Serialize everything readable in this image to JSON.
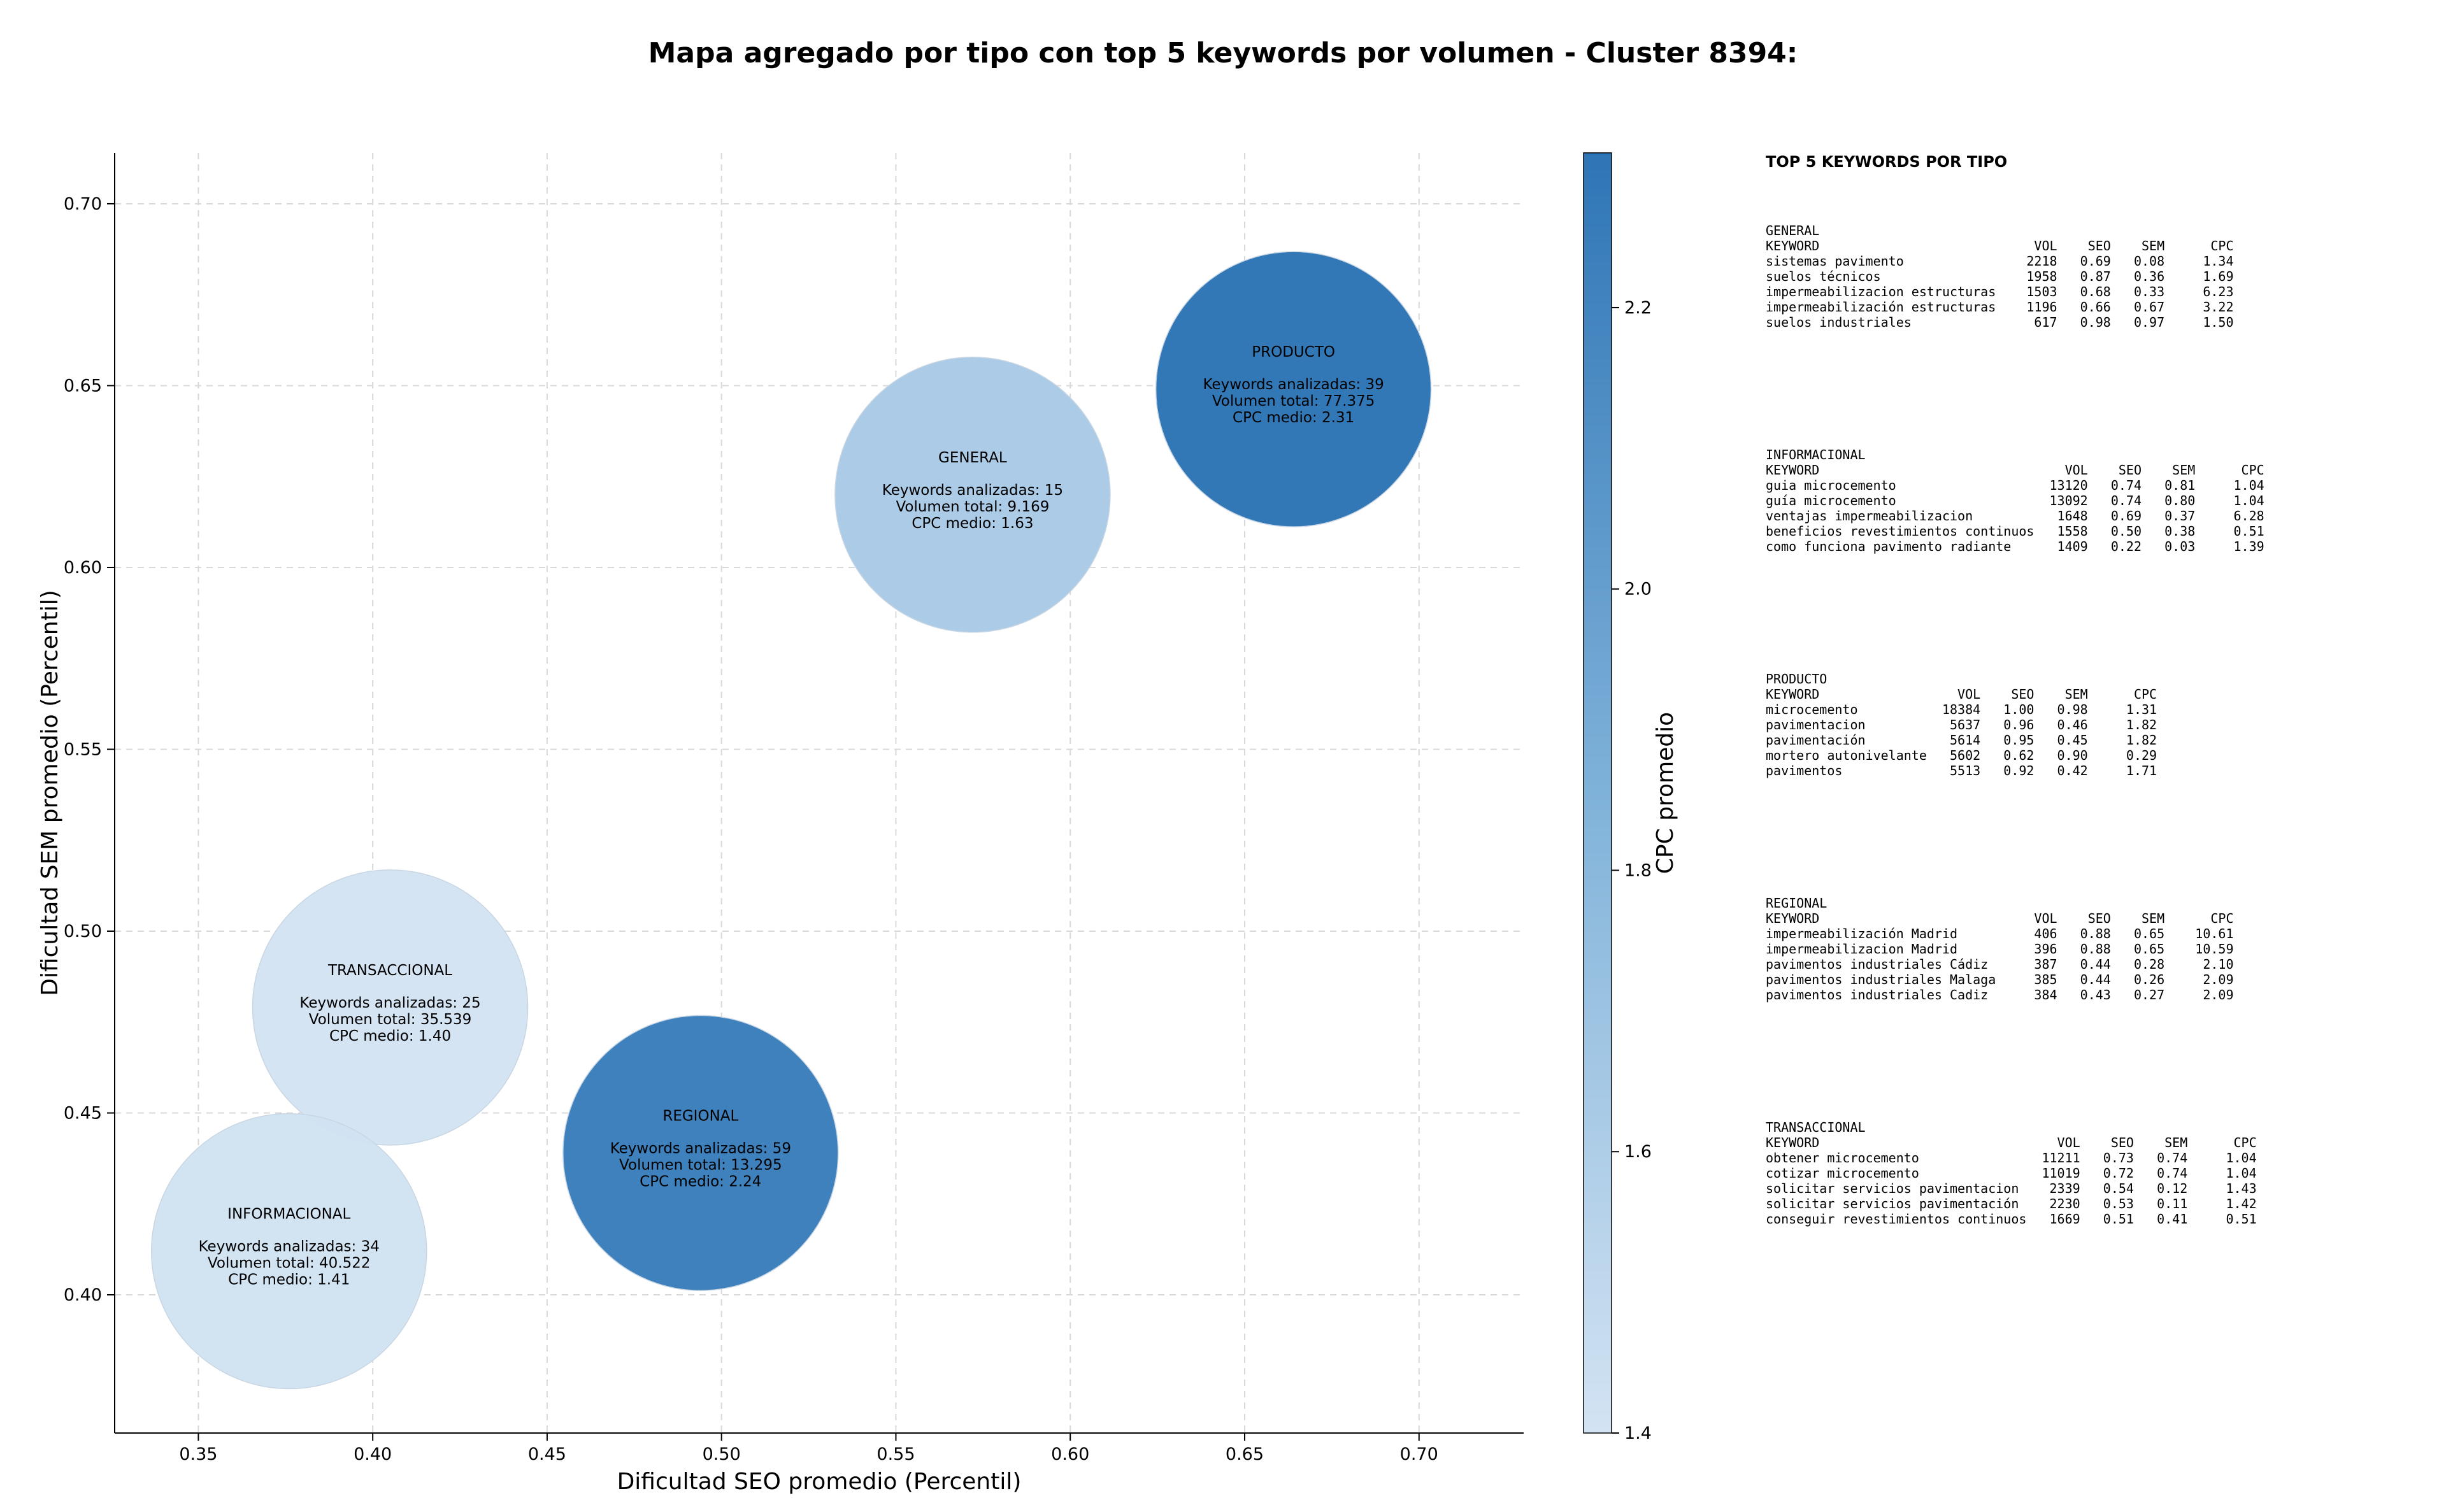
{
  "title": "Mapa agregado por tipo con top 5 keywords por volumen - Cluster 8394:",
  "chart_data": {
    "type": "scatter",
    "xlabel": "Dificultad SEO promedio (Percentil)",
    "ylabel": "Dificultad SEM promedio (Percentil)",
    "xlim": [
      0.326,
      0.73
    ],
    "ylim": [
      0.362,
      0.714
    ],
    "xticks": [
      "0.35",
      "0.40",
      "0.45",
      "0.50",
      "0.55",
      "0.60",
      "0.65",
      "0.70"
    ],
    "yticks": [
      "0.40",
      "0.45",
      "0.50",
      "0.55",
      "0.60",
      "0.65",
      "0.70"
    ],
    "grid": true,
    "colorbar": {
      "label": "CPC promedio",
      "range": [
        1.4,
        2.31
      ],
      "ticks": [
        "1.4",
        "1.6",
        "1.8",
        "2.0",
        "2.2"
      ],
      "color_low": "#d3e3f3",
      "color_high": "#2e75b6"
    },
    "bubbles": [
      {
        "name": "PRODUCTO",
        "x": 0.664,
        "y": 0.649,
        "cpc": 2.31,
        "volume": 77375,
        "lines": [
          "Keywords analizadas: 39",
          "Volumen total: 77.375",
          "CPC medio: 2.31"
        ]
      },
      {
        "name": "GENERAL",
        "x": 0.572,
        "y": 0.62,
        "cpc": 1.63,
        "volume": 9169,
        "lines": [
          "Keywords analizadas: 15",
          "Volumen total: 9.169",
          "CPC medio: 1.63"
        ]
      },
      {
        "name": "TRANSACCIONAL",
        "x": 0.405,
        "y": 0.479,
        "cpc": 1.4,
        "volume": 35539,
        "lines": [
          "Keywords analizadas: 25",
          "Volumen total: 35.539",
          "CPC medio: 1.40"
        ]
      },
      {
        "name": "REGIONAL",
        "x": 0.494,
        "y": 0.439,
        "cpc": 2.24,
        "volume": 13295,
        "lines": [
          "Keywords analizadas: 59",
          "Volumen total: 13.295",
          "CPC medio: 2.24"
        ]
      },
      {
        "name": "INFORMACIONAL",
        "x": 0.376,
        "y": 0.412,
        "cpc": 1.41,
        "volume": 40522,
        "lines": [
          "Keywords analizadas: 34",
          "Volumen total: 40.522",
          "CPC medio: 1.41"
        ]
      }
    ]
  },
  "side_panel": {
    "title": "TOP 5 KEYWORDS POR TIPO",
    "blocks": [
      {
        "text": "GENERAL\nKEYWORD                            VOL    SEO    SEM      CPC\nsistemas pavimento                2218   0.69   0.08     1.34\nsuelos técnicos                   1958   0.87   0.36     1.69\nimpermeabilizacion estructuras    1503   0.68   0.33     6.23\nimpermeabilización estructuras    1196   0.66   0.67     3.22\nsuelos industriales                617   0.98   0.97     1.50"
      },
      {
        "text": "INFORMACIONAL\nKEYWORD                                VOL    SEO    SEM      CPC\nguia microcemento                    13120   0.74   0.81     1.04\nguía microcemento                    13092   0.74   0.80     1.04\nventajas impermeabilizacion           1648   0.69   0.37     6.28\nbeneficios revestimientos continuos   1558   0.50   0.38     0.51\ncomo funciona pavimento radiante      1409   0.22   0.03     1.39"
      },
      {
        "text": "PRODUCTO\nKEYWORD                  VOL    SEO    SEM      CPC\nmicrocemento           18384   1.00   0.98     1.31\npavimentacion           5637   0.96   0.46     1.82\npavimentación           5614   0.95   0.45     1.82\nmortero autonivelante   5602   0.62   0.90     0.29\npavimentos              5513   0.92   0.42     1.71"
      },
      {
        "text": "REGIONAL\nKEYWORD                            VOL    SEO    SEM      CPC\nimpermeabilización Madrid          406   0.88   0.65    10.61\nimpermeabilizacion Madrid          396   0.88   0.65    10.59\npavimentos industriales Cádiz      387   0.44   0.28     2.10\npavimentos industriales Malaga     385   0.44   0.26     2.09\npavimentos industriales Cadiz      384   0.43   0.27     2.09"
      },
      {
        "text": "TRANSACCIONAL\nKEYWORD                               VOL    SEO    SEM      CPC\nobtener microcemento                11211   0.73   0.74     1.04\ncotizar microcemento                11019   0.72   0.74     1.04\nsolicitar servicios pavimentacion    2339   0.54   0.12     1.43\nsolicitar servicios pavimentación    2230   0.53   0.11     1.42\nconseguir revestimientos continuos   1669   0.51   0.41     0.51"
      }
    ]
  }
}
